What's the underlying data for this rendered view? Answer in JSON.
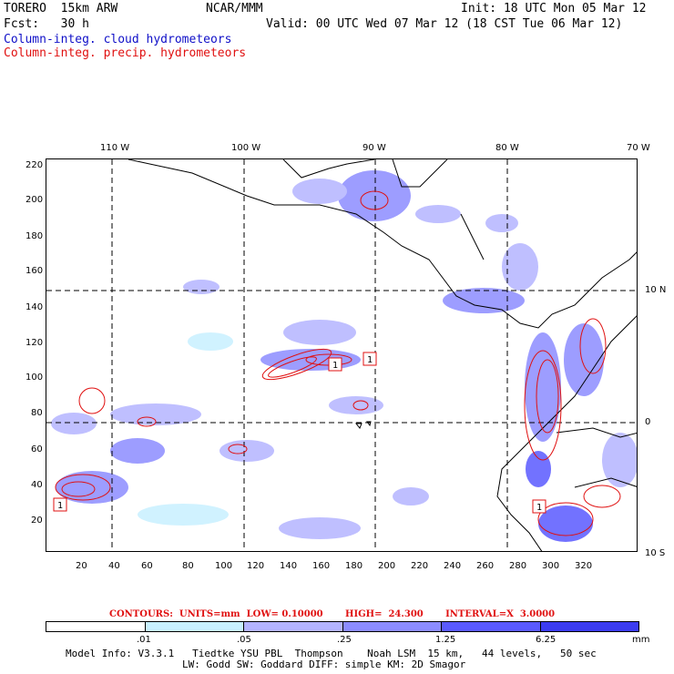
{
  "header": {
    "model": "TORERO  15km ARW",
    "org": "NCAR/MMM",
    "init": "Init: 18 UTC Mon 05 Mar 12",
    "fcst": "Fcst:   30 h",
    "valid": "Valid: 00 UTC Wed 07 Mar 12 (18 CST Tue 06 Mar 12)",
    "field1": "Column-integ. cloud hydrometeors",
    "field2": "Column-integ. precip. hydrometeors"
  },
  "axes": {
    "top_lon": [
      "110 W",
      "100 W",
      "90 W",
      "80 W",
      "70 W"
    ],
    "right_lat": [
      "10 N",
      "0",
      "10 S"
    ],
    "left_y": [
      "220",
      "200",
      "180",
      "160",
      "140",
      "120",
      "100",
      "80",
      "60",
      "40",
      "20"
    ],
    "bottom_x": [
      "20",
      "40",
      "60",
      "80",
      "100",
      "120",
      "140",
      "160",
      "180",
      "200",
      "220",
      "240",
      "260",
      "280",
      "300",
      "320"
    ]
  },
  "contours_label": "CONTOURS:  UNITS=mm  LOW= 0.10000       HIGH=  24.300       INTERVAL=X  3.0000",
  "legend": {
    "values": [
      ".01",
      ".05",
      ".25",
      "1.25",
      "6.25"
    ],
    "unit": "mm",
    "colors": [
      "#ffffff",
      "#c8f0ff",
      "#b4b4ff",
      "#8c8cff",
      "#5a5aff",
      "#3c3cf0",
      "#1e1ee6"
    ]
  },
  "footer": {
    "line1": "Model Info: V3.3.1   Tiedtke YSU PBL  Thompson    Noah LSM  15 km,   44 levels,   50 sec",
    "line2": "LW: Godd SW: Goddard DIFF: simple KM: 2D Smagor"
  },
  "markers": [
    "1",
    "1",
    "1",
    "1"
  ]
}
